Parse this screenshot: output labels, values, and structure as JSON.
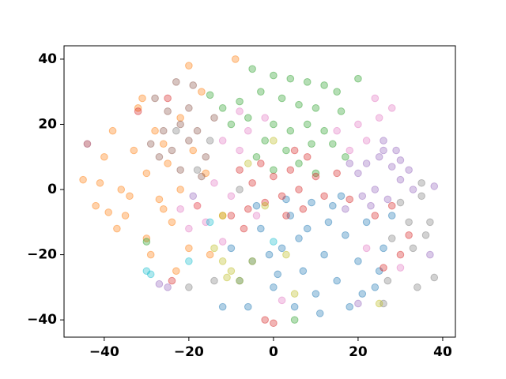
{
  "chart_data": {
    "type": "scatter",
    "xlim": [
      -49.5,
      43
    ],
    "ylim": [
      -45.3,
      44.1
    ],
    "xticks": [
      {
        "value": -40,
        "label": "−40"
      },
      {
        "value": -20,
        "label": "−20"
      },
      0,
      20,
      40
    ],
    "yticks": [
      {
        "value": -40,
        "label": "−40"
      },
      {
        "value": -20,
        "label": "−20"
      },
      0,
      20,
      40
    ],
    "series": [
      {
        "color": "#ff7f0e",
        "x": [
          -45,
          -42,
          -40,
          -38,
          -36,
          -35,
          -33,
          -32,
          -30,
          -30,
          -28,
          -27,
          -25,
          -24,
          -22,
          -22,
          -20,
          -19,
          -18,
          -16,
          -37,
          -34,
          -29,
          -26,
          -41,
          -17,
          -20,
          -9,
          -12,
          -15,
          -31,
          -23,
          -44,
          -39,
          -26
        ],
        "values": [
          3,
          -5,
          10,
          18,
          0,
          -8,
          12,
          25,
          5,
          -15,
          18,
          -3,
          8,
          -10,
          22,
          0,
          -18,
          12,
          -5,
          5,
          -12,
          -2,
          -20,
          14,
          2,
          30,
          38,
          40,
          -8,
          -20,
          28,
          -25,
          14,
          -7,
          -6
        ]
      },
      {
        "color": "#2ca02c",
        "x": [
          -5,
          0,
          4,
          8,
          12,
          15,
          -3,
          2,
          6,
          10,
          -8,
          -12,
          -6,
          0,
          4,
          8,
          12,
          14,
          -2,
          3,
          -10,
          6,
          10,
          -15,
          17,
          16,
          0,
          9,
          -4,
          -30,
          20,
          5
        ],
        "values": [
          37,
          35,
          34,
          33,
          32,
          30,
          30,
          28,
          26,
          25,
          27,
          25,
          22,
          20,
          18,
          20,
          18,
          14,
          15,
          12,
          20,
          8,
          5,
          29,
          10,
          24,
          6,
          14,
          10,
          -16,
          34,
          -40
        ]
      },
      {
        "color": "#1f77b4",
        "x": [
          -10,
          -8,
          -5,
          -3,
          0,
          2,
          4,
          5,
          7,
          8,
          10,
          12,
          14,
          15,
          17,
          18,
          20,
          22,
          24,
          26,
          28,
          -6,
          -12,
          3,
          11,
          6,
          16,
          -1,
          21,
          13,
          25,
          9,
          -4,
          1
        ],
        "values": [
          -18,
          -28,
          -22,
          -12,
          -30,
          -18,
          -8,
          -36,
          -25,
          -12,
          -32,
          -20,
          -5,
          -28,
          -14,
          -36,
          -22,
          -10,
          -30,
          -18,
          -8,
          -36,
          -36,
          -3,
          -38,
          -15,
          -2,
          -20,
          -32,
          -10,
          -25,
          -4,
          -5,
          -26
        ]
      },
      {
        "color": "#d62728",
        "x": [
          -8,
          -5,
          -3,
          0,
          2,
          4,
          6,
          8,
          10,
          12,
          -6,
          -2,
          3,
          -10,
          5,
          7,
          -25,
          -32,
          30,
          32,
          28,
          26,
          0,
          -2,
          -7,
          15,
          18,
          24,
          -24
        ],
        "values": [
          6,
          2,
          8,
          4,
          -2,
          6,
          0,
          10,
          4,
          -2,
          -6,
          -4,
          -8,
          -8,
          12,
          -6,
          28,
          24,
          -20,
          -14,
          -5,
          -24,
          -41,
          -40,
          -12,
          5,
          -3,
          -8,
          -28
        ]
      },
      {
        "color": "#9467bd",
        "x": [
          20,
          22,
          25,
          28,
          30,
          24,
          27,
          23,
          26,
          32,
          21,
          18,
          29,
          33,
          26,
          17,
          30,
          -27,
          -25,
          37,
          20,
          -44,
          38,
          -19
        ],
        "values": [
          5,
          8,
          10,
          7,
          3,
          0,
          -3,
          -5,
          12,
          6,
          -2,
          8,
          12,
          0,
          15,
          -6,
          9,
          -29,
          -30,
          -20,
          -35,
          14,
          1,
          -2
        ]
      },
      {
        "color": "#8c564b",
        "x": [
          -28,
          -25,
          -22,
          -20,
          -24,
          -18,
          -26,
          -20,
          -16,
          -22,
          -19,
          -23,
          -27,
          -14,
          -17,
          -29
        ],
        "values": [
          28,
          24,
          20,
          15,
          12,
          18,
          18,
          25,
          10,
          6,
          32,
          33,
          10,
          22,
          4,
          14
        ]
      },
      {
        "color": "#e377c2",
        "x": [
          -12,
          -8,
          -14,
          -10,
          -18,
          -16,
          -6,
          -4,
          -12,
          15,
          18,
          20,
          22,
          25,
          28,
          -20,
          -8,
          22,
          -22,
          24,
          30,
          2,
          -2
        ],
        "values": [
          15,
          12,
          2,
          -2,
          -5,
          -10,
          18,
          -8,
          -16,
          18,
          12,
          20,
          15,
          22,
          25,
          -12,
          24,
          -18,
          -6,
          28,
          -24,
          -34,
          22
        ]
      },
      {
        "color": "#7f7f7f",
        "x": [
          28,
          32,
          35,
          36,
          34,
          38,
          33,
          30,
          27,
          -18,
          -15,
          -23,
          -8,
          35,
          37,
          -14,
          26,
          -20
        ],
        "values": [
          -15,
          -10,
          -2,
          -14,
          -30,
          -27,
          -18,
          -4,
          -28,
          6,
          15,
          18,
          0,
          2,
          -10,
          -28,
          -35,
          -30
        ]
      },
      {
        "color": "#bcbd22",
        "x": [
          -12,
          -10,
          -11,
          -8,
          -5,
          -12,
          -6,
          0,
          5,
          25,
          3,
          -14,
          -2
        ],
        "values": [
          -22,
          -25,
          -27,
          -28,
          -22,
          -8,
          8,
          15,
          -32,
          -35,
          -20,
          -18,
          -5
        ]
      },
      {
        "color": "#17becf",
        "x": [
          -30,
          -29,
          -20,
          -15,
          0
        ],
        "values": [
          -25,
          -26,
          -22,
          -10,
          -16
        ]
      }
    ]
  }
}
